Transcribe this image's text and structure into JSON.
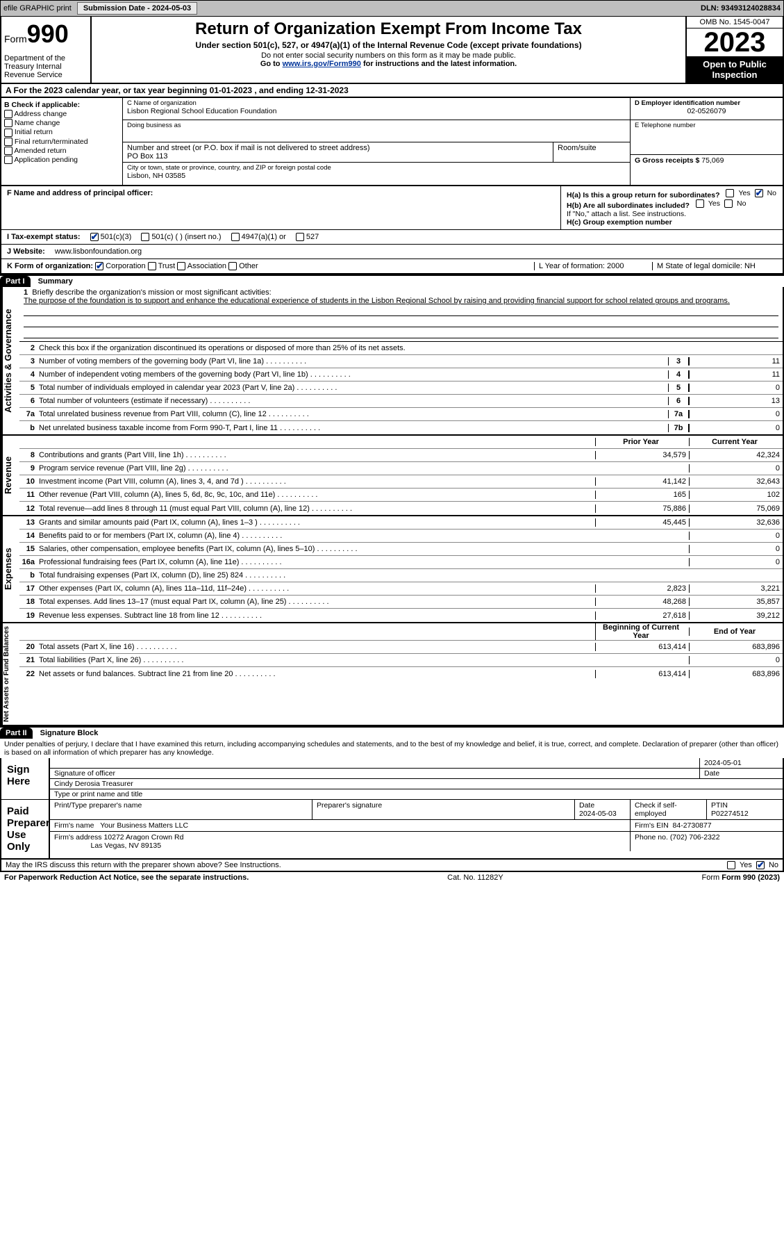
{
  "toolbar": {
    "efile": "efile GRAPHIC print",
    "subdate_label": "Submission Date - 2024-05-03",
    "dln": "DLN: 93493124028834"
  },
  "header": {
    "form_label": "Form",
    "form_no": "990",
    "title": "Return of Organization Exempt From Income Tax",
    "sub1": "Under section 501(c), 527, or 4947(a)(1) of the Internal Revenue Code (except private foundations)",
    "sub2": "Do not enter social security numbers on this form as it may be made public.",
    "sub3_pre": "Go to ",
    "sub3_link": "www.irs.gov/Form990",
    "sub3_post": " for instructions and the latest information.",
    "dept": "Department of the Treasury Internal Revenue Service",
    "omb": "OMB No. 1545-0047",
    "year": "2023",
    "inspect": "Open to Public Inspection"
  },
  "row_a": "A   For the 2023 calendar year, or tax year beginning 01-01-2023    , and ending 12-31-2023",
  "box_b": {
    "label": "B Check if applicable:",
    "opts": [
      "Address change",
      "Name change",
      "Initial return",
      "Final return/terminated",
      "Amended return",
      "Application pending"
    ]
  },
  "box_c": {
    "name_cap": "C Name of organization",
    "name": "Lisbon Regional School Education Foundation",
    "dba_cap": "Doing business as",
    "dba": "",
    "street_cap": "Number and street (or P.O. box if mail is not delivered to street address)",
    "street": "PO Box 113",
    "room_cap": "Room/suite",
    "room": "",
    "city_cap": "City or town, state or province, country, and ZIP or foreign postal code",
    "city": "Lisbon, NH   03585"
  },
  "box_d": {
    "ein_cap": "D Employer identification number",
    "ein": "02-0526079",
    "tel_cap": "E Telephone number",
    "tel": "",
    "gross_cap": "G Gross receipts $ ",
    "gross": "75,069"
  },
  "box_f": {
    "cap": "F  Name and address of principal officer:",
    "val": ""
  },
  "box_h": {
    "a": "H(a)  Is this a group return for subordinates?",
    "a_no": true,
    "b": "H(b)  Are all subordinates included?",
    "b_note": "If \"No,\" attach a list. See instructions.",
    "c": "H(c)  Group exemption number"
  },
  "row_i": {
    "label": "I    Tax-exempt status:",
    "c3": true,
    "opts": [
      "501(c)(3)",
      "501(c) (  ) (insert no.)",
      "4947(a)(1) or",
      "527"
    ]
  },
  "row_j": {
    "label": "J    Website:",
    "val": "www.lisbonfoundation.org"
  },
  "row_k": {
    "label": "K Form of organization:",
    "corp": true,
    "opts": [
      "Corporation",
      "Trust",
      "Association",
      "Other"
    ],
    "l": "L Year of formation: 2000",
    "m": "M State of legal domicile: NH"
  },
  "part1": {
    "hdr": "Part I",
    "title": "Summary"
  },
  "summary": {
    "q1_a": "Briefly describe the organization's mission or most significant activities:",
    "q1_b": "The purpose of the foundation is to support and enhance the educational experience of students in the Lisbon Regional School by raising and providing financial support for school related groups and programs.",
    "q2": "Check this box        if the organization discontinued its operations or disposed of more than 25% of its net assets.",
    "lines_single": [
      {
        "n": "3",
        "t": "Number of voting members of the governing body (Part VI, line 1a)",
        "box": "3",
        "v": "11"
      },
      {
        "n": "4",
        "t": "Number of independent voting members of the governing body (Part VI, line 1b)",
        "box": "4",
        "v": "11"
      },
      {
        "n": "5",
        "t": "Total number of individuals employed in calendar year 2023 (Part V, line 2a)",
        "box": "5",
        "v": "0"
      },
      {
        "n": "6",
        "t": "Total number of volunteers (estimate if necessary)",
        "box": "6",
        "v": "13"
      },
      {
        "n": "7a",
        "t": "Total unrelated business revenue from Part VIII, column (C), line 12",
        "box": "7a",
        "v": "0"
      },
      {
        "n": "b",
        "t": "Net unrelated business taxable income from Form 990-T, Part I, line 11",
        "box": "7b",
        "v": "0"
      }
    ],
    "col_hdrs": {
      "prior": "Prior Year",
      "current": "Current Year",
      "beg": "Beginning of Current Year",
      "end": "End of Year"
    },
    "revenue": [
      {
        "n": "8",
        "t": "Contributions and grants (Part VIII, line 1h)",
        "p": "34,579",
        "c": "42,324"
      },
      {
        "n": "9",
        "t": "Program service revenue (Part VIII, line 2g)",
        "p": "",
        "c": "0"
      },
      {
        "n": "10",
        "t": "Investment income (Part VIII, column (A), lines 3, 4, and 7d )",
        "p": "41,142",
        "c": "32,643"
      },
      {
        "n": "11",
        "t": "Other revenue (Part VIII, column (A), lines 5, 6d, 8c, 9c, 10c, and 11e)",
        "p": "165",
        "c": "102"
      },
      {
        "n": "12",
        "t": "Total revenue—add lines 8 through 11 (must equal Part VIII, column (A), line 12)",
        "p": "75,886",
        "c": "75,069"
      }
    ],
    "expenses": [
      {
        "n": "13",
        "t": "Grants and similar amounts paid (Part IX, column (A), lines 1–3 )",
        "p": "45,445",
        "c": "32,636"
      },
      {
        "n": "14",
        "t": "Benefits paid to or for members (Part IX, column (A), line 4)",
        "p": "",
        "c": "0"
      },
      {
        "n": "15",
        "t": "Salaries, other compensation, employee benefits (Part IX, column (A), lines 5–10)",
        "p": "",
        "c": "0"
      },
      {
        "n": "16a",
        "t": "Professional fundraising fees (Part IX, column (A), line 11e)",
        "p": "",
        "c": "0"
      },
      {
        "n": "b",
        "t": "Total fundraising expenses (Part IX, column (D), line 25) 824",
        "p": "shade",
        "c": "shade"
      },
      {
        "n": "17",
        "t": "Other expenses (Part IX, column (A), lines 11a–11d, 11f–24e)",
        "p": "2,823",
        "c": "3,221"
      },
      {
        "n": "18",
        "t": "Total expenses. Add lines 13–17 (must equal Part IX, column (A), line 25)",
        "p": "48,268",
        "c": "35,857"
      },
      {
        "n": "19",
        "t": "Revenue less expenses. Subtract line 18 from line 12",
        "p": "27,618",
        "c": "39,212"
      }
    ],
    "netassets": [
      {
        "n": "20",
        "t": "Total assets (Part X, line 16)",
        "p": "613,414",
        "c": "683,896"
      },
      {
        "n": "21",
        "t": "Total liabilities (Part X, line 26)",
        "p": "",
        "c": "0"
      },
      {
        "n": "22",
        "t": "Net assets or fund balances. Subtract line 21 from line 20",
        "p": "613,414",
        "c": "683,896"
      }
    ]
  },
  "side_labels": {
    "act": "Activities & Governance",
    "rev": "Revenue",
    "exp": "Expenses",
    "net": "Net Assets or Fund Balances"
  },
  "part2": {
    "hdr": "Part II",
    "title": "Signature Block",
    "decl": "Under penalties of perjury, I declare that I have examined this return, including accompanying schedules and statements, and to the best of my knowledge and belief, it is true, correct, and complete. Declaration of preparer (other than officer) is based on all information of which preparer has any knowledge."
  },
  "sign": {
    "here": "Sign Here",
    "sig_cap": "Signature of officer",
    "date_cap": "Date",
    "date": "2024-05-01",
    "name": "Cindy Derosia  Treasurer",
    "name_cap": "Type or print name and title"
  },
  "paid": {
    "label": "Paid Preparer Use Only",
    "prep_name_cap": "Print/Type preparer's name",
    "prep_name": "",
    "prep_sig_cap": "Preparer's signature",
    "prep_date_cap": "Date",
    "prep_date": "2024-05-03",
    "check_cap": "Check         if self-employed",
    "ptin_cap": "PTIN",
    "ptin": "P02274512",
    "firm_name_cap": "Firm's name",
    "firm_name": "Your Business Matters LLC",
    "firm_ein_cap": "Firm's EIN",
    "firm_ein": "84-2730877",
    "firm_addr_cap": "Firm's address",
    "firm_addr1": "10272 Aragon Crown Rd",
    "firm_addr2": "Las Vegas, NV  89135",
    "phone_cap": "Phone no.",
    "phone": "(702) 706-2322"
  },
  "discuss": "May the IRS discuss this return with the preparer shown above? See Instructions.",
  "footer": {
    "pra": "For Paperwork Reduction Act Notice, see the separate instructions.",
    "cat": "Cat. No. 11282Y",
    "form": "Form 990 (2023)"
  }
}
